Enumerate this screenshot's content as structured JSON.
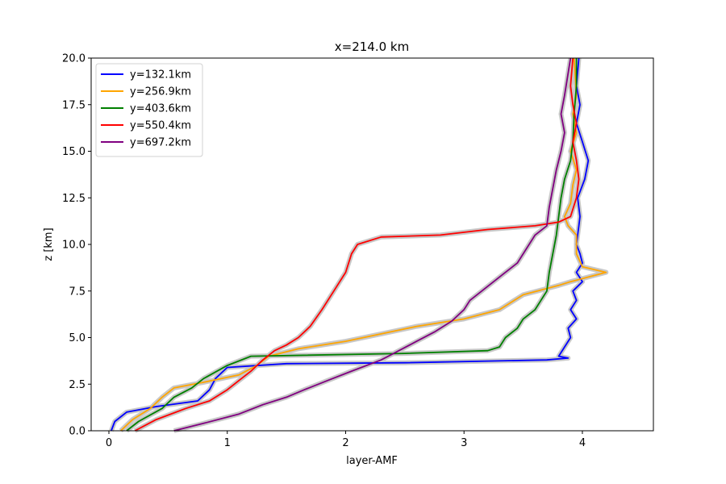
{
  "chart_data": {
    "type": "line",
    "title": "x=214.0 km",
    "xlabel": "layer-AMF",
    "ylabel": "z [km]",
    "xlim": [
      -0.15,
      4.6
    ],
    "ylim": [
      0,
      20
    ],
    "xticks": [
      0,
      1,
      2,
      3,
      4
    ],
    "xtick_labels": [
      "0",
      "1",
      "2",
      "3",
      "4"
    ],
    "yticks": [
      0,
      2.5,
      5,
      7.5,
      10,
      12.5,
      15,
      17.5,
      20
    ],
    "ytick_labels": [
      "0.0",
      "2.5",
      "5.0",
      "7.5",
      "10.0",
      "12.5",
      "15.0",
      "17.5",
      "20.0"
    ],
    "grid": false,
    "legend_position": "top-left",
    "series": [
      {
        "name": "y=132.1km",
        "color": "#0000ff",
        "points": [
          [
            0.02,
            0
          ],
          [
            0.05,
            0.5
          ],
          [
            0.15,
            1
          ],
          [
            0.4,
            1.3
          ],
          [
            0.75,
            1.6
          ],
          [
            0.85,
            2.2
          ],
          [
            0.9,
            2.8
          ],
          [
            1.0,
            3.4
          ],
          [
            1.5,
            3.6
          ],
          [
            2.5,
            3.65
          ],
          [
            3.7,
            3.8
          ],
          [
            3.88,
            3.9
          ],
          [
            3.8,
            4.0
          ],
          [
            3.85,
            4.5
          ],
          [
            3.9,
            5.0
          ],
          [
            3.88,
            5.5
          ],
          [
            3.95,
            6.0
          ],
          [
            3.9,
            6.5
          ],
          [
            3.95,
            7.0
          ],
          [
            3.92,
            7.5
          ],
          [
            4.0,
            8.0
          ],
          [
            3.95,
            8.5
          ],
          [
            4.0,
            9.0
          ],
          [
            3.98,
            9.5
          ],
          [
            3.95,
            10.0
          ],
          [
            3.97,
            11.0
          ],
          [
            3.98,
            11.5
          ],
          [
            3.96,
            12.5
          ],
          [
            4.02,
            13.5
          ],
          [
            4.05,
            14.5
          ],
          [
            4.0,
            15.5
          ],
          [
            3.95,
            16.5
          ],
          [
            3.98,
            17.5
          ],
          [
            3.95,
            18.5
          ],
          [
            3.97,
            20
          ]
        ]
      },
      {
        "name": "y=256.9km",
        "color": "#ffa500",
        "points": [
          [
            0.1,
            0
          ],
          [
            0.2,
            0.6
          ],
          [
            0.35,
            1.2
          ],
          [
            0.45,
            1.8
          ],
          [
            0.55,
            2.3
          ],
          [
            0.8,
            2.6
          ],
          [
            1.1,
            3.0
          ],
          [
            1.25,
            3.5
          ],
          [
            1.35,
            4.0
          ],
          [
            1.6,
            4.4
          ],
          [
            2.0,
            4.8
          ],
          [
            2.3,
            5.2
          ],
          [
            2.6,
            5.6
          ],
          [
            3.0,
            6.0
          ],
          [
            3.3,
            6.5
          ],
          [
            3.5,
            7.3
          ],
          [
            3.8,
            7.8
          ],
          [
            3.9,
            8.0
          ],
          [
            4.2,
            8.5
          ],
          [
            4.0,
            8.8
          ],
          [
            3.95,
            9.5
          ],
          [
            3.95,
            10.5
          ],
          [
            3.88,
            11.0
          ],
          [
            3.85,
            11.5
          ],
          [
            3.9,
            12.2
          ],
          [
            3.92,
            13.2
          ],
          [
            3.95,
            14.0
          ],
          [
            3.9,
            15.0
          ],
          [
            3.95,
            16.0
          ],
          [
            3.92,
            17.0
          ],
          [
            3.95,
            18.0
          ],
          [
            3.93,
            20
          ]
        ]
      },
      {
        "name": "y=403.6km",
        "color": "#008000",
        "points": [
          [
            0.15,
            0
          ],
          [
            0.25,
            0.5
          ],
          [
            0.45,
            1.2
          ],
          [
            0.55,
            1.8
          ],
          [
            0.7,
            2.3
          ],
          [
            0.8,
            2.8
          ],
          [
            1.0,
            3.5
          ],
          [
            1.2,
            4.0
          ],
          [
            2.5,
            4.15
          ],
          [
            3.2,
            4.3
          ],
          [
            3.3,
            4.5
          ],
          [
            3.35,
            5.0
          ],
          [
            3.45,
            5.5
          ],
          [
            3.5,
            6.0
          ],
          [
            3.6,
            6.5
          ],
          [
            3.65,
            7.0
          ],
          [
            3.7,
            7.5
          ],
          [
            3.72,
            8.5
          ],
          [
            3.75,
            9.5
          ],
          [
            3.78,
            10.5
          ],
          [
            3.8,
            11.5
          ],
          [
            3.82,
            12.5
          ],
          [
            3.85,
            13.5
          ],
          [
            3.9,
            14.5
          ],
          [
            3.92,
            15.5
          ],
          [
            3.93,
            17.0
          ],
          [
            3.95,
            18.5
          ],
          [
            3.95,
            20
          ]
        ]
      },
      {
        "name": "y=550.4km",
        "color": "#ff0000",
        "points": [
          [
            0.22,
            0
          ],
          [
            0.4,
            0.6
          ],
          [
            0.65,
            1.2
          ],
          [
            0.85,
            1.6
          ],
          [
            1.0,
            2.2
          ],
          [
            1.1,
            2.7
          ],
          [
            1.2,
            3.2
          ],
          [
            1.3,
            3.8
          ],
          [
            1.4,
            4.3
          ],
          [
            1.5,
            4.6
          ],
          [
            1.6,
            5.0
          ],
          [
            1.7,
            5.6
          ],
          [
            1.8,
            6.5
          ],
          [
            1.9,
            7.5
          ],
          [
            2.0,
            8.5
          ],
          [
            2.05,
            9.5
          ],
          [
            2.1,
            10.0
          ],
          [
            2.3,
            10.4
          ],
          [
            2.8,
            10.5
          ],
          [
            3.2,
            10.8
          ],
          [
            3.6,
            11.0
          ],
          [
            3.8,
            11.2
          ],
          [
            3.9,
            11.5
          ],
          [
            3.95,
            12.5
          ],
          [
            3.97,
            13.5
          ],
          [
            3.95,
            14.5
          ],
          [
            3.92,
            15.5
          ],
          [
            3.95,
            16.5
          ],
          [
            3.92,
            17.5
          ],
          [
            3.9,
            18.5
          ],
          [
            3.92,
            20
          ]
        ]
      },
      {
        "name": "y=697.2km",
        "color": "#800080",
        "points": [
          [
            0.55,
            0
          ],
          [
            0.8,
            0.4
          ],
          [
            1.1,
            0.9
          ],
          [
            1.3,
            1.4
          ],
          [
            1.5,
            1.8
          ],
          [
            1.65,
            2.2
          ],
          [
            1.85,
            2.7
          ],
          [
            2.05,
            3.2
          ],
          [
            2.3,
            3.8
          ],
          [
            2.45,
            4.3
          ],
          [
            2.6,
            4.8
          ],
          [
            2.75,
            5.3
          ],
          [
            2.9,
            5.9
          ],
          [
            3.0,
            6.5
          ],
          [
            3.05,
            7.0
          ],
          [
            3.15,
            7.5
          ],
          [
            3.25,
            8.0
          ],
          [
            3.35,
            8.5
          ],
          [
            3.45,
            9.0
          ],
          [
            3.5,
            9.5
          ],
          [
            3.6,
            10.5
          ],
          [
            3.7,
            11.0
          ],
          [
            3.72,
            12.0
          ],
          [
            3.75,
            13.0
          ],
          [
            3.78,
            14.0
          ],
          [
            3.82,
            15.0
          ],
          [
            3.85,
            16.0
          ],
          [
            3.82,
            17.0
          ],
          [
            3.85,
            18.0
          ],
          [
            3.9,
            20
          ]
        ]
      }
    ]
  }
}
